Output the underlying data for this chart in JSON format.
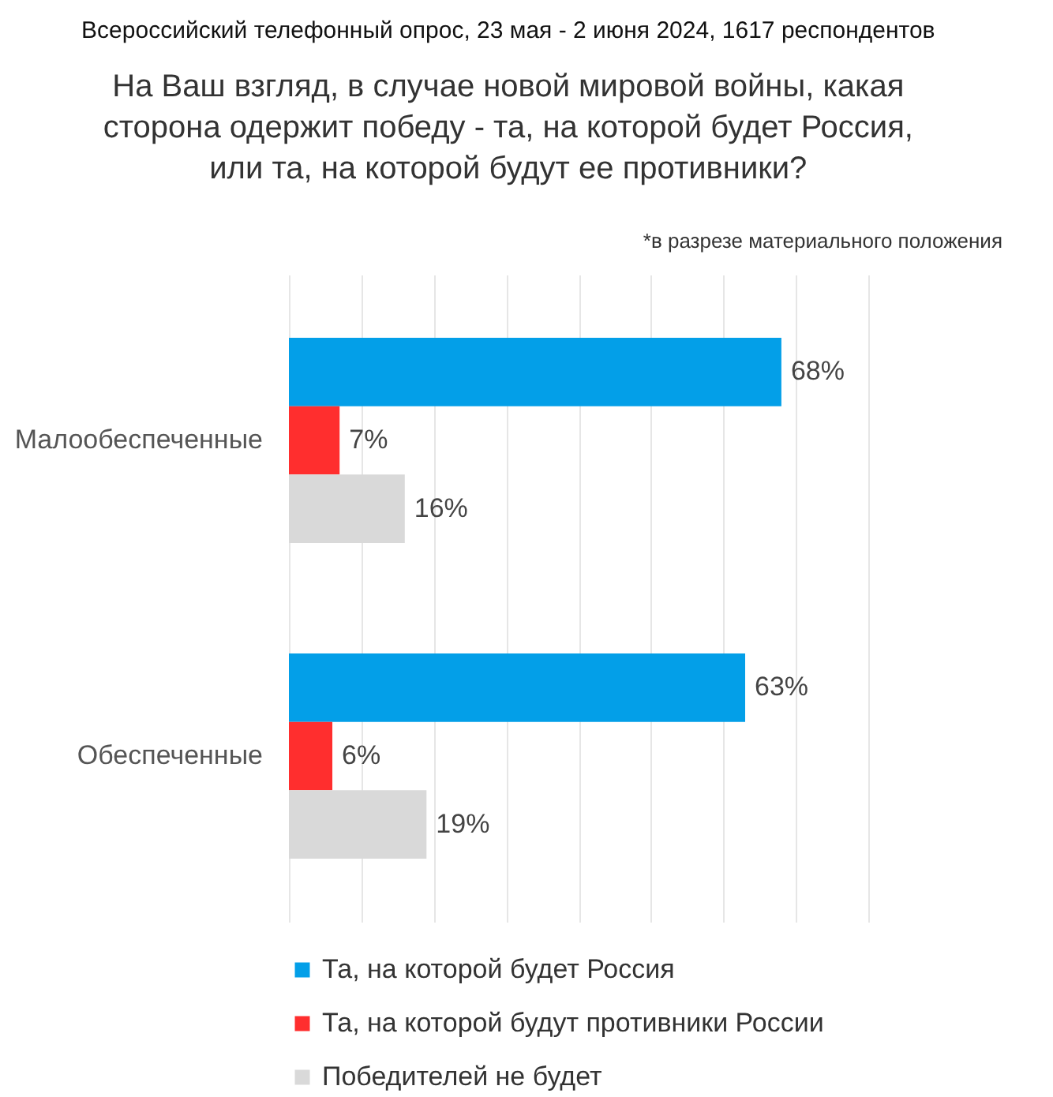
{
  "chart_data": {
    "type": "bar",
    "orientation": "horizontal",
    "title": "На Ваш взгляд, в случае новой мировой войны, какая\nсторона одержит победу - та, на которой будет Россия,\nили та, на которой будут ее противники?",
    "subtitle": "*в разрезе материального положения",
    "annotations": [
      "Всероссийский телефонный опрос, 23 мая - 2 июня 2024, 1617 респондентов"
    ],
    "categories": [
      "Малообеспеченные",
      "Обеспеченные"
    ],
    "series": [
      {
        "name": "Та, на которой будет Россия",
        "color": "#039fe8",
        "values": [
          68,
          63
        ],
        "value_labels": [
          "68%",
          "63%"
        ]
      },
      {
        "name": "Та, на которой будут противники России",
        "color": "#ff2e2e",
        "values": [
          7,
          6
        ],
        "value_labels": [
          "7%",
          "6%"
        ]
      },
      {
        "name": "Победителей не будет",
        "color": "#d9d9d9",
        "values": [
          16,
          19
        ],
        "value_labels": [
          "16%",
          "19%"
        ]
      }
    ],
    "xlim": [
      0,
      80
    ],
    "xticks": [
      {
        "value": 0,
        "label": null
      },
      {
        "value": 10,
        "label": null
      },
      {
        "value": 20,
        "label": null
      },
      {
        "value": 30,
        "label": null
      },
      {
        "value": 40,
        "label": null
      },
      {
        "value": 50,
        "label": null
      },
      {
        "value": 60,
        "label": null
      },
      {
        "value": 70,
        "label": null
      },
      {
        "value": 80,
        "label": null
      }
    ],
    "grid": "x",
    "legend": "bottom",
    "tick_labels": "y"
  }
}
